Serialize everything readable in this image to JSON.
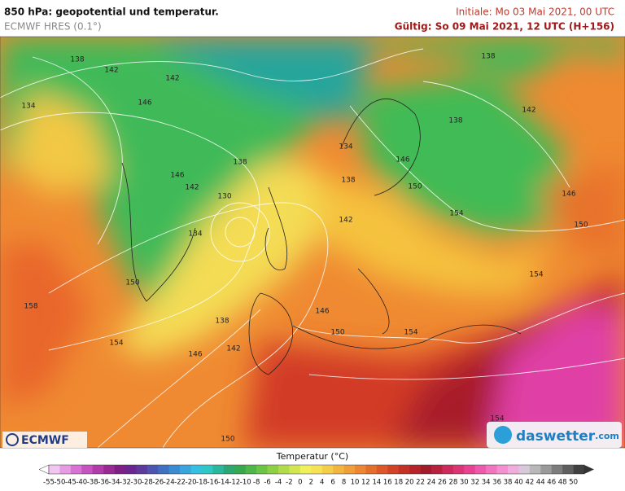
{
  "header": {
    "title": "850 hPa: geopotential und temperatur.",
    "subtitle": "ECMWF HRES (0.1°)",
    "init": "Initiale: Mo 03 Mai 2021, 00 UTC",
    "valid": "Gültig: So 09 Mai 2021, 12 UTC (H+156)"
  },
  "map": {
    "contour_labels": [
      "138",
      "142",
      "146",
      "134",
      "138",
      "142",
      "142",
      "138",
      "134",
      "146",
      "138",
      "146",
      "142",
      "130",
      "138",
      "150",
      "146",
      "154",
      "142",
      "150",
      "134",
      "150",
      "158",
      "154",
      "146",
      "138",
      "142",
      "150",
      "154",
      "154",
      "146",
      "154",
      "150"
    ]
  },
  "colorbar": {
    "title": "Temperatur (°C)",
    "ticks": [
      -55,
      -50,
      -45,
      -40,
      -38,
      -36,
      -34,
      -32,
      -30,
      -28,
      -26,
      -24,
      -22,
      -20,
      -18,
      -16,
      -14,
      -12,
      -10,
      -8,
      -6,
      -4,
      -2,
      0,
      2,
      4,
      6,
      8,
      10,
      12,
      14,
      16,
      18,
      20,
      22,
      24,
      26,
      28,
      30,
      32,
      34,
      36,
      38,
      40,
      42,
      44,
      46,
      48,
      50
    ]
  },
  "logos": {
    "left": "ECMWF",
    "right": "daswetter",
    "right_suffix": ".com"
  }
}
